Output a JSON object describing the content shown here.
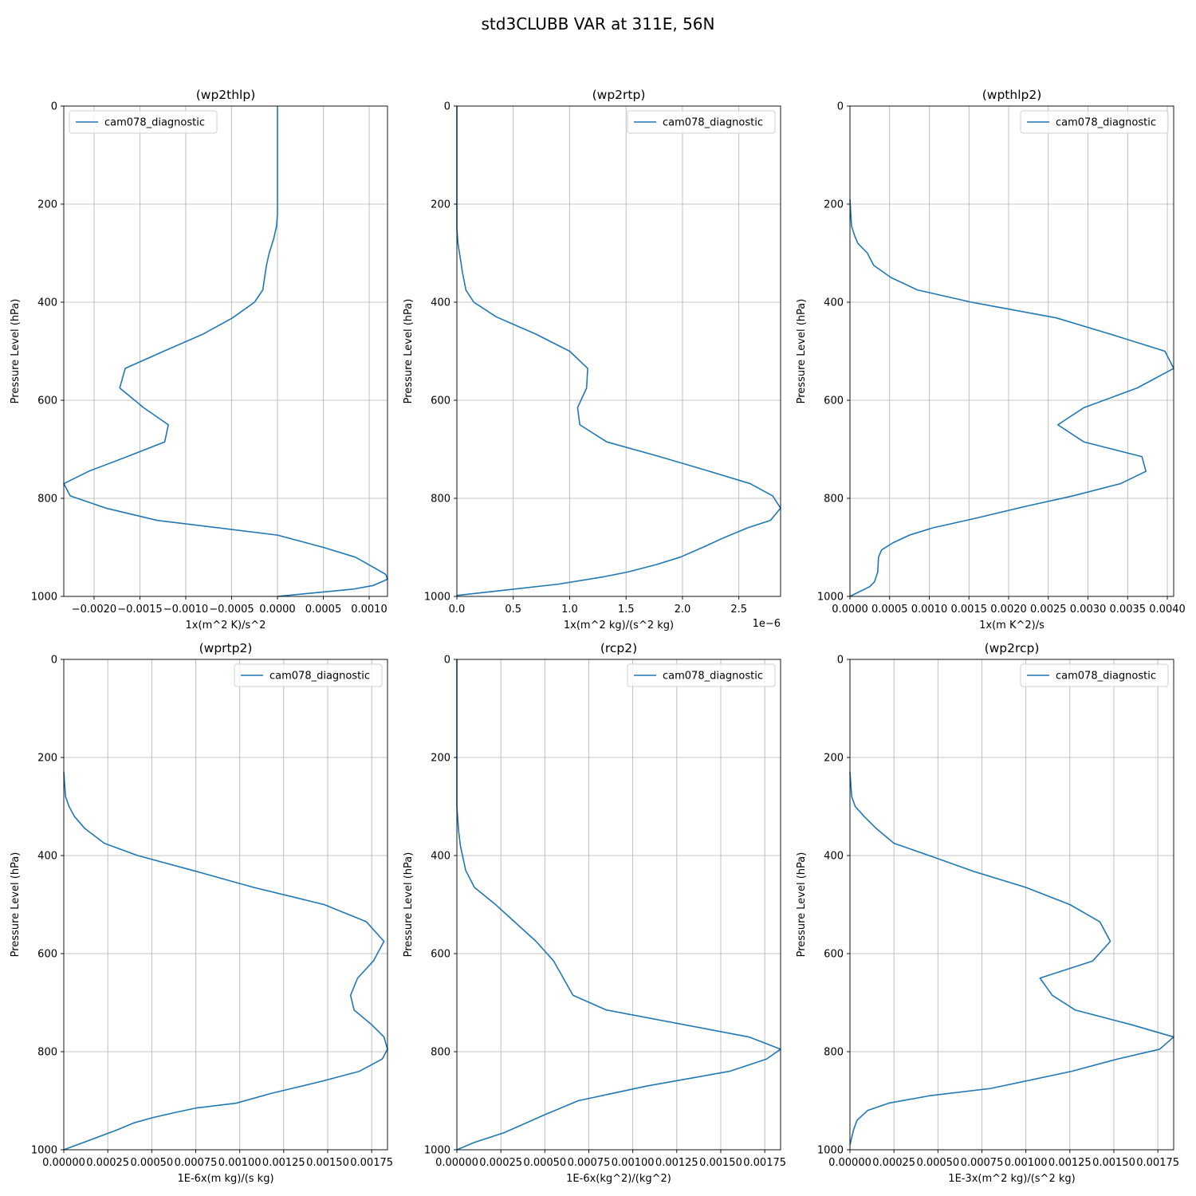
{
  "figure": {
    "title": "std3CLUBB VAR at 311E, 56N"
  },
  "chart_data": [
    {
      "type": "line",
      "title": "(wp2thlp)",
      "xlabel": "1x(m^2 K)/s^2",
      "ylabel": "Pressure Level (hPa)",
      "xlim": [
        -0.00233,
        0.0012
      ],
      "ylim": [
        1000,
        0
      ],
      "xticks": [
        -0.002,
        -0.0015,
        -0.001,
        -0.0005,
        0.0,
        0.0005,
        0.001
      ],
      "xticklabels": [
        "−0.0020",
        "−0.0015",
        "−0.0010",
        "−0.0005",
        "0.0000",
        "0.0005",
        "0.0010"
      ],
      "x_offset_label": "",
      "yticks": [
        0,
        200,
        400,
        600,
        800,
        1000
      ],
      "grid": true,
      "legend": "top-left",
      "series": [
        {
          "name": "cam078_diagnostic",
          "color": "#1f77b4",
          "x": [
            0.0,
            0.0,
            0.0,
            0.0,
            -1e-05,
            -4e-05,
            -9e-05,
            -0.00012,
            -0.00014,
            -0.00016,
            -0.00025,
            -0.00049,
            -0.00081,
            -0.00124,
            -0.00166,
            -0.00172,
            -0.00146,
            -0.00119,
            -0.00123,
            -0.00164,
            -0.00206,
            -0.00233,
            -0.00226,
            -0.00187,
            -0.00131,
            0.0,
            0.0005,
            0.00085,
            0.00104,
            0.00118,
            0.0012,
            0.00104,
            0.00083,
            0.0
          ],
          "y": [
            0,
            100,
            200,
            220,
            245,
            270,
            300,
            325,
            350,
            375,
            400,
            432,
            465,
            500,
            535,
            575,
            615,
            650,
            685,
            715,
            745,
            770,
            795,
            820,
            845,
            875,
            900,
            920,
            940,
            955,
            965,
            978,
            985,
            1000
          ]
        }
      ]
    },
    {
      "type": "line",
      "title": "(wp2rtp)",
      "xlabel": "1x(m^2 kg)/(s^2 kg)",
      "ylabel": "Pressure Level (hPa)",
      "xlim": [
        0.0,
        2.87e-06
      ],
      "ylim": [
        1000,
        0
      ],
      "xticks": [
        0.0,
        5e-07,
        1e-06,
        1.5e-06,
        2e-06,
        2.5e-06
      ],
      "xticklabels": [
        "0.0",
        "0.5",
        "1.0",
        "1.5",
        "2.0",
        "2.5"
      ],
      "x_offset_label": "1e−6",
      "yticks": [
        0,
        200,
        400,
        600,
        800,
        1000
      ],
      "grid": true,
      "legend": "top-right",
      "series": [
        {
          "name": "cam078_diagnostic",
          "color": "#1f77b4",
          "x": [
            0.0,
            0.0,
            0.0,
            1e-08,
            3e-08,
            5e-08,
            8e-08,
            1.5e-07,
            3.5e-07,
            7e-07,
            1e-06,
            1.16e-06,
            1.15e-06,
            1.07e-06,
            1.09e-06,
            1.33e-06,
            1.8e-06,
            2.24e-06,
            2.6e-06,
            2.8e-06,
            2.87e-06,
            2.78e-06,
            2.58e-06,
            2.37e-06,
            2.18e-06,
            1.98e-06,
            1.77e-06,
            1.52e-06,
            1.3e-06,
            9e-07,
            0.0
          ],
          "y": [
            0,
            150,
            250,
            280,
            310,
            340,
            375,
            400,
            430,
            465,
            500,
            535,
            575,
            615,
            650,
            685,
            715,
            745,
            770,
            795,
            820,
            845,
            860,
            880,
            900,
            920,
            935,
            950,
            960,
            975,
            998
          ]
        }
      ]
    },
    {
      "type": "line",
      "title": "(wpthlp2)",
      "xlabel": "1x(m K^2)/s",
      "ylabel": "Pressure Level (hPa)",
      "xlim": [
        0.0,
        0.00408
      ],
      "ylim": [
        1000,
        0
      ],
      "xticks": [
        0.0,
        0.0005,
        0.001,
        0.0015,
        0.002,
        0.0025,
        0.003,
        0.0035,
        0.004
      ],
      "xticklabels": [
        "0.0000",
        "0.0005",
        "0.0010",
        "0.0015",
        "0.0020",
        "0.0025",
        "0.0030",
        "0.0035",
        "0.0040"
      ],
      "x_offset_label": "",
      "yticks": [
        0,
        200,
        400,
        600,
        800,
        1000
      ],
      "grid": true,
      "legend": "top-right",
      "series": [
        {
          "name": "cam078_diagnostic",
          "color": "#1f77b4",
          "x": [
            0.0,
            2e-05,
            6e-05,
            0.0001,
            0.00022,
            0.0003,
            0.00052,
            0.00085,
            0.00153,
            0.0026,
            0.00328,
            0.00397,
            0.00408,
            0.00362,
            0.00295,
            0.00262,
            0.00295,
            0.00368,
            0.00373,
            0.00341,
            0.00281,
            0.00225,
            0.0016,
            0.00105,
            0.00075,
            0.00055,
            0.0004,
            0.00036,
            0.00035,
            0.00031,
            0.00025,
            0.0
          ],
          "y": [
            190,
            245,
            265,
            280,
            300,
            325,
            350,
            375,
            400,
            432,
            465,
            500,
            535,
            575,
            615,
            650,
            685,
            715,
            745,
            770,
            795,
            815,
            840,
            860,
            875,
            890,
            905,
            920,
            950,
            970,
            980,
            1000
          ]
        }
      ]
    },
    {
      "type": "line",
      "title": "(wprtp2)",
      "xlabel": "1E-6x(m kg)/(s kg)",
      "ylabel": "Pressure Level (hPa)",
      "xlim": [
        0.0,
        0.00184
      ],
      "ylim": [
        1000,
        0
      ],
      "xticks": [
        0.0,
        0.00025,
        0.0005,
        0.00075,
        0.001,
        0.00125,
        0.0015,
        0.00175
      ],
      "xticklabels": [
        "0.00000",
        "0.00025",
        "0.00050",
        "0.00075",
        "0.00100",
        "0.00125",
        "0.00150",
        "0.00175"
      ],
      "x_offset_label": "",
      "yticks": [
        0,
        200,
        400,
        600,
        800,
        1000
      ],
      "grid": true,
      "legend": "top-right",
      "series": [
        {
          "name": "cam078_diagnostic",
          "color": "#1f77b4",
          "x": [
            0.0,
            1e-05,
            3e-05,
            6e-05,
            0.00012,
            0.00023,
            0.00042,
            0.00075,
            0.00108,
            0.00148,
            0.00172,
            0.00182,
            0.00176,
            0.00167,
            0.00163,
            0.00165,
            0.00175,
            0.00182,
            0.00184,
            0.00181,
            0.00168,
            0.00147,
            0.00118,
            0.00098,
            0.00075,
            0.00062,
            0.0005,
            0.0004,
            0.0003,
            0.00015,
            0.0
          ],
          "y": [
            230,
            280,
            300,
            320,
            345,
            375,
            400,
            432,
            465,
            500,
            535,
            575,
            615,
            650,
            685,
            715,
            745,
            770,
            795,
            815,
            840,
            860,
            885,
            905,
            915,
            925,
            935,
            945,
            960,
            980,
            1000
          ]
        }
      ]
    },
    {
      "type": "line",
      "title": "(rcp2)",
      "xlabel": "1E-6x(kg^2)/(kg^2)",
      "ylabel": "Pressure Level (hPa)",
      "xlim": [
        0.0,
        0.00184
      ],
      "ylim": [
        1000,
        0
      ],
      "xticks": [
        0.0,
        0.00025,
        0.0005,
        0.00075,
        0.001,
        0.00125,
        0.0015,
        0.00175
      ],
      "xticklabels": [
        "0.00000",
        "0.00025",
        "0.00050",
        "0.00075",
        "0.00100",
        "0.00125",
        "0.00150",
        "0.00175"
      ],
      "x_offset_label": "",
      "yticks": [
        0,
        200,
        400,
        600,
        800,
        1000
      ],
      "grid": true,
      "legend": "top-right",
      "series": [
        {
          "name": "cam078_diagnostic",
          "color": "#1f77b4",
          "x": [
            0.0,
            0.0,
            0.0,
            1e-05,
            2e-05,
            5e-05,
            0.0001,
            0.00022,
            0.00045,
            0.00055,
            0.00066,
            0.00085,
            0.00166,
            0.00184,
            0.00176,
            0.00155,
            0.00108,
            0.00069,
            0.00049,
            0.00027,
            0.0001,
            0.0
          ],
          "y": [
            0,
            200,
            300,
            350,
            380,
            430,
            465,
            500,
            575,
            615,
            685,
            715,
            770,
            795,
            815,
            840,
            870,
            900,
            930,
            965,
            985,
            1000
          ]
        }
      ]
    },
    {
      "type": "line",
      "title": "(wp2rcp)",
      "xlabel": "1E-3x(m^2 kg)/(s^2 kg)",
      "ylabel": "Pressure Level (hPa)",
      "xlim": [
        0.0,
        0.00184
      ],
      "ylim": [
        1000,
        0
      ],
      "xticks": [
        0.0,
        0.00025,
        0.0005,
        0.00075,
        0.001,
        0.00125,
        0.0015,
        0.00175
      ],
      "xticklabels": [
        "0.00000",
        "0.00025",
        "0.00050",
        "0.00075",
        "0.00100",
        "0.00125",
        "0.00150",
        "0.00175"
      ],
      "x_offset_label": "",
      "yticks": [
        0,
        200,
        400,
        600,
        800,
        1000
      ],
      "grid": true,
      "legend": "top-right",
      "series": [
        {
          "name": "cam078_diagnostic",
          "color": "#1f77b4",
          "x": [
            0.0,
            1e-05,
            3e-05,
            8e-05,
            0.00015,
            0.00025,
            0.00045,
            0.0007,
            0.001,
            0.00125,
            0.00142,
            0.00148,
            0.00138,
            0.00108,
            0.00115,
            0.00128,
            0.0016,
            0.00184,
            0.00176,
            0.00152,
            0.00126,
            0.0008,
            0.00045,
            0.00022,
            0.0001,
            4e-05,
            2e-05,
            0.0
          ],
          "y": [
            230,
            280,
            300,
            320,
            345,
            375,
            400,
            432,
            465,
            500,
            535,
            575,
            615,
            650,
            685,
            715,
            745,
            770,
            795,
            815,
            840,
            875,
            890,
            905,
            920,
            940,
            960,
            990
          ]
        }
      ]
    }
  ]
}
